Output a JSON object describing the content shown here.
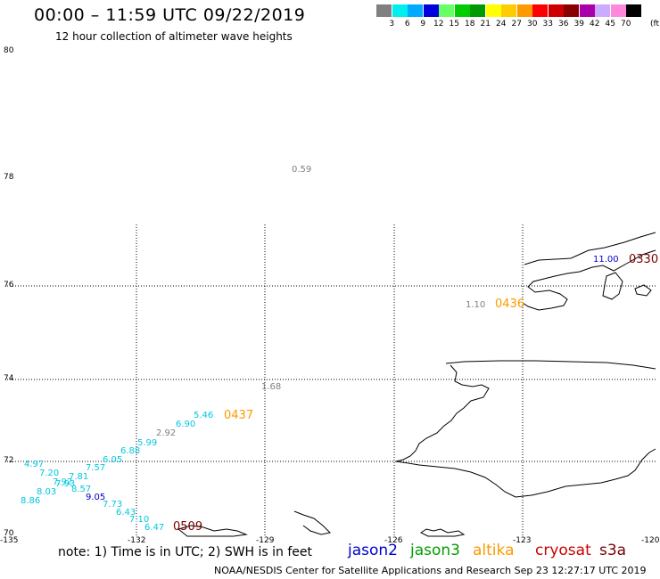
{
  "title": "00:00 – 11:59 UTC 09/22/2019",
  "subtitle": "12 hour collection of altimeter wave heights",
  "note": "note:  1) Time is in UTC;  2) SWH is in feet",
  "credit": "NOAA/NESDIS Center for Satellite Applications and Research    Sep 23 12:27:17 UTC 2019",
  "satellites": [
    {
      "name": "jason2",
      "color": "#0000cc"
    },
    {
      "name": "jason3",
      "color": "#00a000"
    },
    {
      "name": "altika",
      "color": "#ff9900"
    },
    {
      "name": "cryosat",
      "color": "#cc0000"
    },
    {
      "name": "s3a",
      "color": "#7a0000"
    }
  ],
  "color_scale": {
    "unit": "(ft)",
    "bins": [
      {
        "label": "3",
        "color": "#808080"
      },
      {
        "label": "6",
        "color": "#00eeee"
      },
      {
        "label": "9",
        "color": "#00aaff"
      },
      {
        "label": "12",
        "color": "#0000dd"
      },
      {
        "label": "15",
        "color": "#66ff66"
      },
      {
        "label": "18",
        "color": "#00cc00"
      },
      {
        "label": "21",
        "color": "#009900"
      },
      {
        "label": "24",
        "color": "#ffff00"
      },
      {
        "label": "27",
        "color": "#ffcc00"
      },
      {
        "label": "30",
        "color": "#ff9900"
      },
      {
        "label": "33",
        "color": "#ff0000"
      },
      {
        "label": "36",
        "color": "#cc0000"
      },
      {
        "label": "39",
        "color": "#880000"
      },
      {
        "label": "42",
        "color": "#aa00aa"
      },
      {
        "label": "45",
        "color": "#ccaaff"
      },
      {
        "label": "70",
        "color": "#ff88dd"
      },
      {
        "label": "",
        "color": "#000000"
      }
    ]
  },
  "lat_labels": [
    "80",
    "78",
    "76",
    "74",
    "72",
    "70"
  ],
  "lon_labels": [
    "-135",
    "-132",
    "-129",
    "-126",
    "-123",
    "-120"
  ],
  "swh_points": [
    {
      "v": "0.59",
      "color": "#808080"
    },
    {
      "v": "11.00",
      "color": "#0000cc"
    },
    {
      "v": "1.10",
      "color": "#808080"
    },
    {
      "v": "1.68",
      "color": "#808080"
    },
    {
      "v": "5.46",
      "color": "#00c8e0"
    },
    {
      "v": "6.90",
      "color": "#00c8e0"
    },
    {
      "v": "2.92",
      "color": "#808080"
    },
    {
      "v": "5.99",
      "color": "#00c8e0"
    },
    {
      "v": "6.88",
      "color": "#00c8e0"
    },
    {
      "v": "6.05",
      "color": "#00c8e0"
    },
    {
      "v": "4.97",
      "color": "#00c8e0"
    },
    {
      "v": "7.57",
      "color": "#00c8e0"
    },
    {
      "v": "7.20",
      "color": "#00c8e0"
    },
    {
      "v": "7.81",
      "color": "#00c8e0"
    },
    {
      "v": "7.92",
      "color": "#00c8e0"
    },
    {
      "v": "7.93",
      "color": "#00c8e0"
    },
    {
      "v": "8.57",
      "color": "#00c8e0"
    },
    {
      "v": "8.03",
      "color": "#00c8e0"
    },
    {
      "v": "9.05",
      "color": "#0000cc"
    },
    {
      "v": "8.86",
      "color": "#00c8e0"
    },
    {
      "v": "7.73",
      "color": "#00c8e0"
    },
    {
      "v": "6.43",
      "color": "#00c8e0"
    },
    {
      "v": "7.10",
      "color": "#00c8e0"
    },
    {
      "v": "6.47",
      "color": "#00c8e0"
    }
  ],
  "time_labels": [
    {
      "v": "0330",
      "color": "#7a0000"
    },
    {
      "v": "0436",
      "color": "#ff9900"
    },
    {
      "v": "0437",
      "color": "#ff9900"
    },
    {
      "v": "0509",
      "color": "#7a0000"
    }
  ]
}
